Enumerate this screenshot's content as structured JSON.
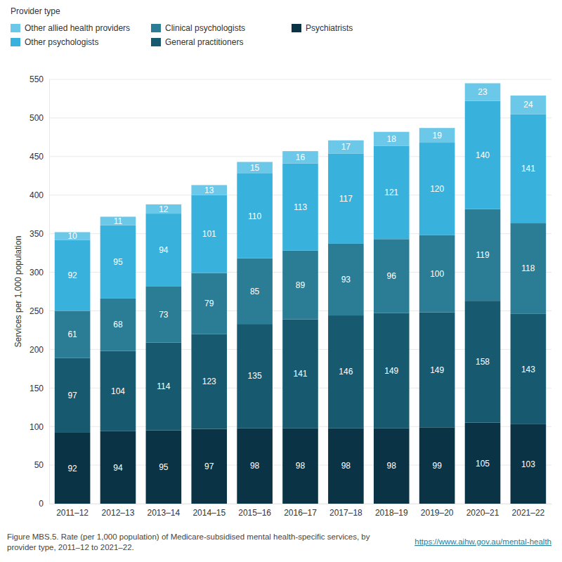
{
  "chart_data": {
    "type": "bar",
    "stacked": true,
    "data_labels": true,
    "grid": true,
    "legend": "top-left",
    "legend_title": "Provider type",
    "title": "Figure MBS.5. Rate (per 1,000 population) of Medicare-subsidised mental health-specific services, by provider type, 2011–12 to 2021–22.",
    "annotations": [
      "https://www.aihw.gov.au/mental-health"
    ],
    "y_label": "Services per 1,000 population",
    "categories": [
      "2011–12",
      "2012–13",
      "2013–14",
      "2014–15",
      "2015–16",
      "2016–17",
      "2017–18",
      "2018–19",
      "2019–20",
      "2020–21",
      "2021–22"
    ],
    "series": [
      {
        "name": "Psychiatrists",
        "color": "#0a3446",
        "values": [
          92,
          94,
          95,
          97,
          98,
          98,
          98,
          98,
          99,
          105,
          103
        ]
      },
      {
        "name": "General practitioners",
        "color": "#175a70",
        "values": [
          97,
          104,
          114,
          123,
          135,
          141,
          146,
          149,
          149,
          158,
          143
        ]
      },
      {
        "name": "Clinical psychologists",
        "color": "#2a7d95",
        "values": [
          61,
          68,
          73,
          79,
          85,
          89,
          93,
          96,
          100,
          119,
          118
        ]
      },
      {
        "name": "Other psychologists",
        "color": "#38b2dc",
        "values": [
          92,
          95,
          94,
          101,
          110,
          113,
          117,
          121,
          120,
          140,
          141
        ]
      },
      {
        "name": "Other allied health providers",
        "color": "#6cc8e8",
        "values": [
          10,
          11,
          12,
          13,
          15,
          16,
          17,
          18,
          19,
          23,
          24
        ]
      }
    ],
    "ylim": [
      0,
      550
    ],
    "yticks": [
      0,
      50,
      100,
      150,
      200,
      250,
      300,
      350,
      400,
      450,
      500,
      550
    ]
  }
}
